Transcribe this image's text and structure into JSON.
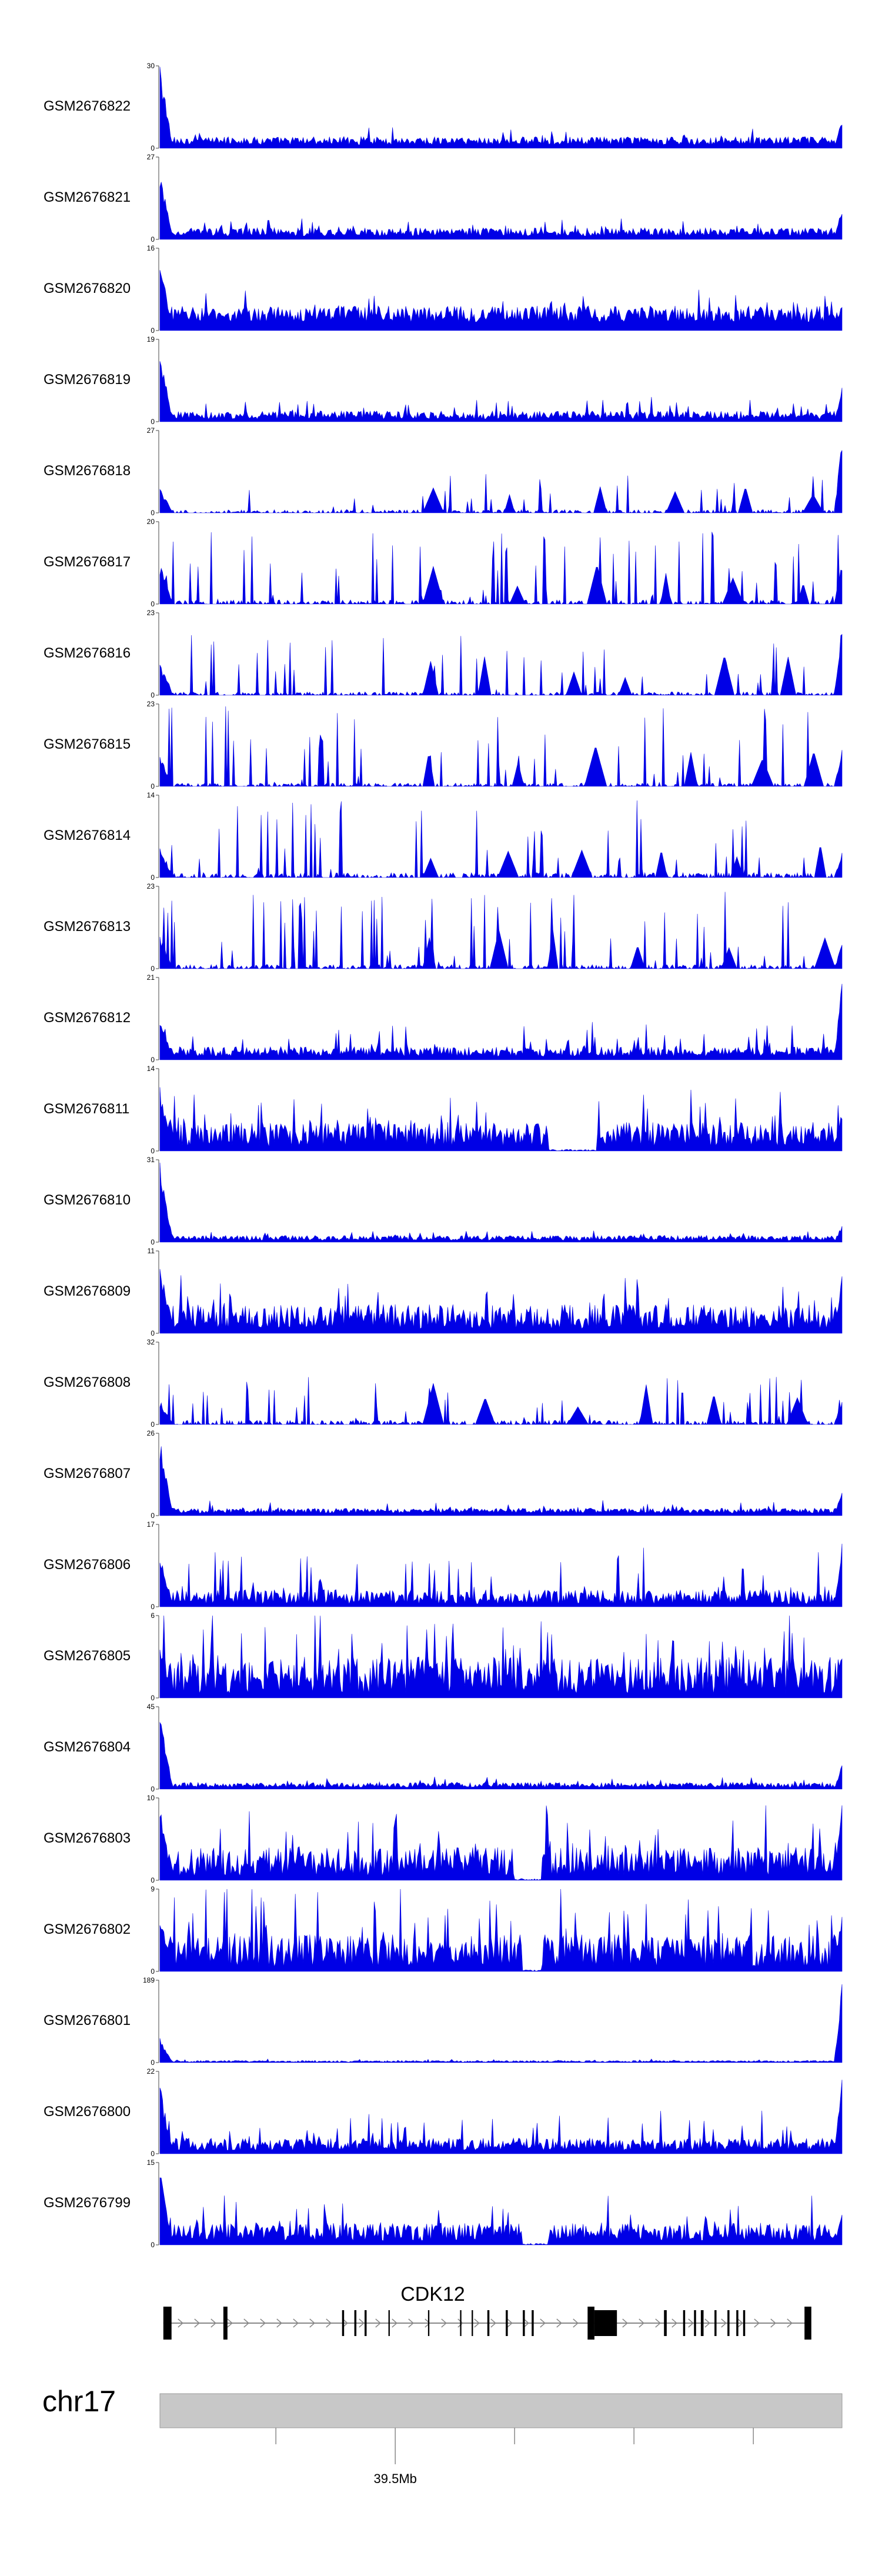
{
  "chart_data": {
    "type": "area",
    "series_color": "#0000e6",
    "tracks": [
      {
        "name": "GSM2676822",
        "ymax": 30,
        "ymin": 0,
        "baseline": 0.04,
        "noise": 0.1,
        "spike": 0.12,
        "spikeProb": 0.08,
        "start": 1.0,
        "end": 0.35,
        "gaps": [],
        "tri": false
      },
      {
        "name": "GSM2676821",
        "ymax": 27,
        "ymin": 0,
        "baseline": 0.04,
        "noise": 0.1,
        "spike": 0.14,
        "spikeProb": 0.08,
        "start": 0.9,
        "end": 0.4,
        "gaps": [],
        "tri": false
      },
      {
        "name": "GSM2676820",
        "ymax": 16,
        "ymin": 0,
        "baseline": 0.1,
        "noise": 0.2,
        "spike": 0.22,
        "spikeProb": 0.08,
        "start": 0.9,
        "end": 0.35,
        "gaps": [],
        "tri": false
      },
      {
        "name": "GSM2676819",
        "ymax": 19,
        "ymin": 0,
        "baseline": 0.03,
        "noise": 0.1,
        "spike": 0.2,
        "spikeProb": 0.08,
        "start": 0.85,
        "end": 0.45,
        "gaps": [],
        "tri": false
      },
      {
        "name": "GSM2676818",
        "ymax": 27,
        "ymin": 0,
        "baseline": 0.0,
        "noise": 0.04,
        "spike": 0.45,
        "spikeProb": 0.12,
        "start": 0.3,
        "end": 0.95,
        "gaps": [],
        "tri": true
      },
      {
        "name": "GSM2676817",
        "ymax": 20,
        "ymin": 0,
        "baseline": 0.0,
        "noise": 0.05,
        "spike": 0.85,
        "spikeProb": 0.18,
        "start": 0.5,
        "end": 0.5,
        "gaps": [],
        "tri": true
      },
      {
        "name": "GSM2676816",
        "ymax": 23,
        "ymin": 0,
        "baseline": 0.0,
        "noise": 0.04,
        "spike": 0.7,
        "spikeProb": 0.14,
        "start": 0.4,
        "end": 0.9,
        "gaps": [],
        "tri": true
      },
      {
        "name": "GSM2676815",
        "ymax": 23,
        "ymin": 0,
        "baseline": 0.0,
        "noise": 0.04,
        "spike": 0.95,
        "spikeProb": 0.15,
        "start": 0.4,
        "end": 0.5,
        "gaps": [],
        "tri": true
      },
      {
        "name": "GSM2676814",
        "ymax": 14,
        "ymin": 0,
        "baseline": 0.0,
        "noise": 0.06,
        "spike": 0.9,
        "spikeProb": 0.18,
        "start": 0.4,
        "end": 0.3,
        "gaps": [],
        "tri": true
      },
      {
        "name": "GSM2676813",
        "ymax": 23,
        "ymin": 0,
        "baseline": 0.0,
        "noise": 0.05,
        "spike": 0.9,
        "spikeProb": 0.15,
        "start": 0.4,
        "end": 0.3,
        "gaps": [],
        "tri": true
      },
      {
        "name": "GSM2676812",
        "ymax": 21,
        "ymin": 0,
        "baseline": 0.04,
        "noise": 0.12,
        "spike": 0.35,
        "spikeProb": 0.1,
        "start": 0.55,
        "end": 1.0,
        "gaps": [],
        "tri": false
      },
      {
        "name": "GSM2676811",
        "ymax": 14,
        "ymin": 0,
        "baseline": 0.05,
        "noise": 0.3,
        "spike": 0.45,
        "spikeProb": 0.1,
        "start": 0.8,
        "end": 0.5,
        "gaps": [
          [
            0.57,
            0.64
          ]
        ],
        "tri": false
      },
      {
        "name": "GSM2676810",
        "ymax": 31,
        "ymin": 0,
        "baseline": 0.02,
        "noise": 0.06,
        "spike": 0.08,
        "spikeProb": 0.08,
        "start": 1.0,
        "end": 0.2,
        "gaps": [],
        "tri": false
      },
      {
        "name": "GSM2676809",
        "ymax": 11,
        "ymin": 0,
        "baseline": 0.05,
        "noise": 0.3,
        "spike": 0.5,
        "spikeProb": 0.1,
        "start": 0.9,
        "end": 0.75,
        "gaps": [],
        "tri": false
      },
      {
        "name": "GSM2676808",
        "ymax": 32,
        "ymin": 0,
        "baseline": 0.0,
        "noise": 0.05,
        "spike": 0.55,
        "spikeProb": 0.15,
        "start": 0.3,
        "end": 0.3,
        "gaps": [],
        "tri": true
      },
      {
        "name": "GSM2676807",
        "ymax": 26,
        "ymin": 0,
        "baseline": 0.03,
        "noise": 0.06,
        "spike": 0.12,
        "spikeProb": 0.08,
        "start": 0.95,
        "end": 0.3,
        "gaps": [],
        "tri": false
      },
      {
        "name": "GSM2676806",
        "ymax": 17,
        "ymin": 0,
        "baseline": 0.03,
        "noise": 0.18,
        "spike": 0.55,
        "spikeProb": 0.1,
        "start": 0.7,
        "end": 0.85,
        "gaps": [],
        "tri": false
      },
      {
        "name": "GSM2676805",
        "ymax": 6,
        "ymin": 0,
        "baseline": 0.05,
        "noise": 0.45,
        "spike": 0.7,
        "spikeProb": 0.15,
        "start": 0.7,
        "end": 0.6,
        "gaps": [],
        "tri": false
      },
      {
        "name": "GSM2676804",
        "ymax": 45,
        "ymin": 0,
        "baseline": 0.02,
        "noise": 0.06,
        "spike": 0.08,
        "spikeProb": 0.08,
        "start": 0.95,
        "end": 0.3,
        "gaps": [],
        "tri": false
      },
      {
        "name": "GSM2676803",
        "ymax": 10,
        "ymin": 0,
        "baseline": 0.05,
        "noise": 0.35,
        "spike": 0.6,
        "spikeProb": 0.12,
        "start": 0.9,
        "end": 0.95,
        "gaps": [
          [
            0.52,
            0.56
          ]
        ],
        "tri": false
      },
      {
        "name": "GSM2676802",
        "ymax": 9,
        "ymin": 0,
        "baseline": 0.05,
        "noise": 0.4,
        "spike": 0.7,
        "spikeProb": 0.14,
        "start": 0.7,
        "end": 0.8,
        "gaps": [
          [
            0.53,
            0.56
          ]
        ],
        "tri": false
      },
      {
        "name": "GSM2676801",
        "ymax": 189,
        "ymin": 0,
        "baseline": 0.005,
        "noise": 0.02,
        "spike": 0.02,
        "spikeProb": 0.06,
        "start": 0.3,
        "end": 1.0,
        "gaps": [],
        "tri": false
      },
      {
        "name": "GSM2676800",
        "ymax": 22,
        "ymin": 0,
        "baseline": 0.04,
        "noise": 0.15,
        "spike": 0.35,
        "spikeProb": 0.1,
        "start": 0.85,
        "end": 0.9,
        "gaps": [],
        "tri": false
      },
      {
        "name": "GSM2676799",
        "ymax": 15,
        "ymin": 0,
        "baseline": 0.05,
        "noise": 0.22,
        "spike": 0.4,
        "spikeProb": 0.1,
        "start": 0.95,
        "end": 0.4,
        "gaps": [
          [
            0.53,
            0.57
          ]
        ],
        "tri": false
      }
    ],
    "gene": {
      "name": "CDK12",
      "strand": "+",
      "exons": [
        [
          0.0,
          0.012
        ],
        [
          0.088,
          0.094
        ],
        [
          0.262,
          0.265
        ],
        [
          0.28,
          0.283
        ],
        [
          0.295,
          0.298
        ],
        [
          0.33,
          0.332
        ],
        [
          0.388,
          0.39
        ],
        [
          0.435,
          0.437
        ],
        [
          0.452,
          0.454
        ],
        [
          0.475,
          0.478
        ],
        [
          0.502,
          0.505
        ],
        [
          0.527,
          0.53
        ],
        [
          0.54,
          0.543
        ],
        [
          0.622,
          0.632
        ],
        [
          0.632,
          0.665
        ],
        [
          0.734,
          0.738
        ],
        [
          0.762,
          0.765
        ],
        [
          0.778,
          0.781
        ],
        [
          0.788,
          0.792
        ],
        [
          0.808,
          0.811
        ],
        [
          0.827,
          0.83
        ],
        [
          0.84,
          0.843
        ],
        [
          0.85,
          0.853
        ],
        [
          0.94,
          0.95
        ]
      ],
      "tall_exons": [
        [
          0.0,
          0.012
        ],
        [
          0.088,
          0.094
        ],
        [
          0.622,
          0.632
        ],
        [
          0.94,
          0.95
        ]
      ]
    },
    "chromosome": "chr17",
    "axis_tick_label": "39.5Mb",
    "axis_ticks": [
      0.17,
      0.345,
      0.52,
      0.695,
      0.87
    ]
  }
}
